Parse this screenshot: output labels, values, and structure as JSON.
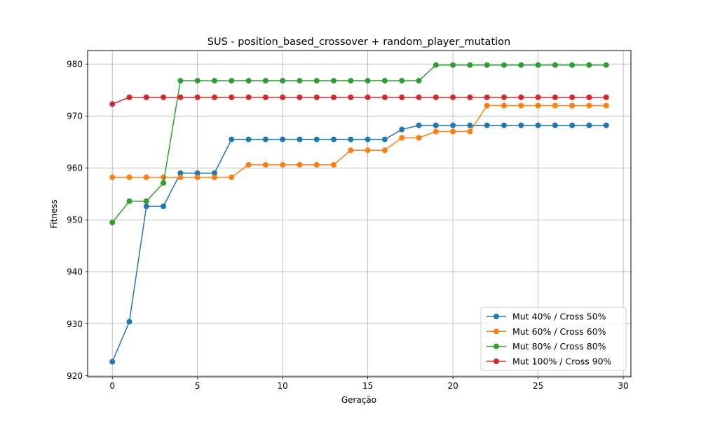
{
  "chart_data": {
    "type": "line",
    "title": "SUS - position_based_crossover + random_player_mutation",
    "xlabel": "Geração",
    "ylabel": "Fitness",
    "xlim": [
      -1.45,
      30.45
    ],
    "ylim": [
      919.8,
      982.6
    ],
    "xticks": [
      0,
      5,
      10,
      15,
      20,
      25,
      30
    ],
    "yticks": [
      920,
      930,
      940,
      950,
      960,
      970,
      980
    ],
    "grid": true,
    "legend_position": "lower right",
    "x": [
      0,
      1,
      2,
      3,
      4,
      5,
      6,
      7,
      8,
      9,
      10,
      11,
      12,
      13,
      14,
      15,
      16,
      17,
      18,
      19,
      20,
      21,
      22,
      23,
      24,
      25,
      26,
      27,
      28,
      29
    ],
    "series": [
      {
        "name": "Mut 40% / Cross 50%",
        "color": "#1f77b4",
        "values": [
          922.7,
          930.4,
          952.6,
          952.6,
          959.0,
          959.0,
          959.0,
          965.5,
          965.5,
          965.5,
          965.5,
          965.5,
          965.5,
          965.5,
          965.5,
          965.5,
          965.5,
          967.4,
          968.2,
          968.2,
          968.2,
          968.2,
          968.2,
          968.2,
          968.2,
          968.2,
          968.2,
          968.2,
          968.2,
          968.2
        ]
      },
      {
        "name": "Mut 60% / Cross 60%",
        "color": "#ff7f0e",
        "values": [
          958.2,
          958.2,
          958.2,
          958.2,
          958.2,
          958.2,
          958.2,
          958.2,
          960.6,
          960.6,
          960.6,
          960.6,
          960.6,
          960.6,
          963.4,
          963.4,
          963.4,
          965.8,
          965.8,
          967.0,
          967.0,
          967.0,
          972.0,
          972.0,
          972.0,
          972.0,
          972.0,
          972.0,
          972.0,
          972.0
        ]
      },
      {
        "name": "Mut 80% / Cross 80%",
        "color": "#2ca02c",
        "values": [
          949.5,
          953.6,
          953.6,
          957.1,
          976.8,
          976.8,
          976.8,
          976.8,
          976.8,
          976.8,
          976.8,
          976.8,
          976.8,
          976.8,
          976.8,
          976.8,
          976.8,
          976.8,
          976.8,
          979.8,
          979.8,
          979.8,
          979.8,
          979.8,
          979.8,
          979.8,
          979.8,
          979.8,
          979.8,
          979.8
        ]
      },
      {
        "name": "Mut 100% / Cross 90%",
        "color": "#d62728",
        "values": [
          972.3,
          973.6,
          973.6,
          973.6,
          973.6,
          973.6,
          973.6,
          973.6,
          973.6,
          973.6,
          973.6,
          973.6,
          973.6,
          973.6,
          973.6,
          973.6,
          973.6,
          973.6,
          973.6,
          973.6,
          973.6,
          973.6,
          973.6,
          973.6,
          973.6,
          973.6,
          973.6,
          973.6,
          973.6,
          973.6
        ]
      }
    ]
  }
}
